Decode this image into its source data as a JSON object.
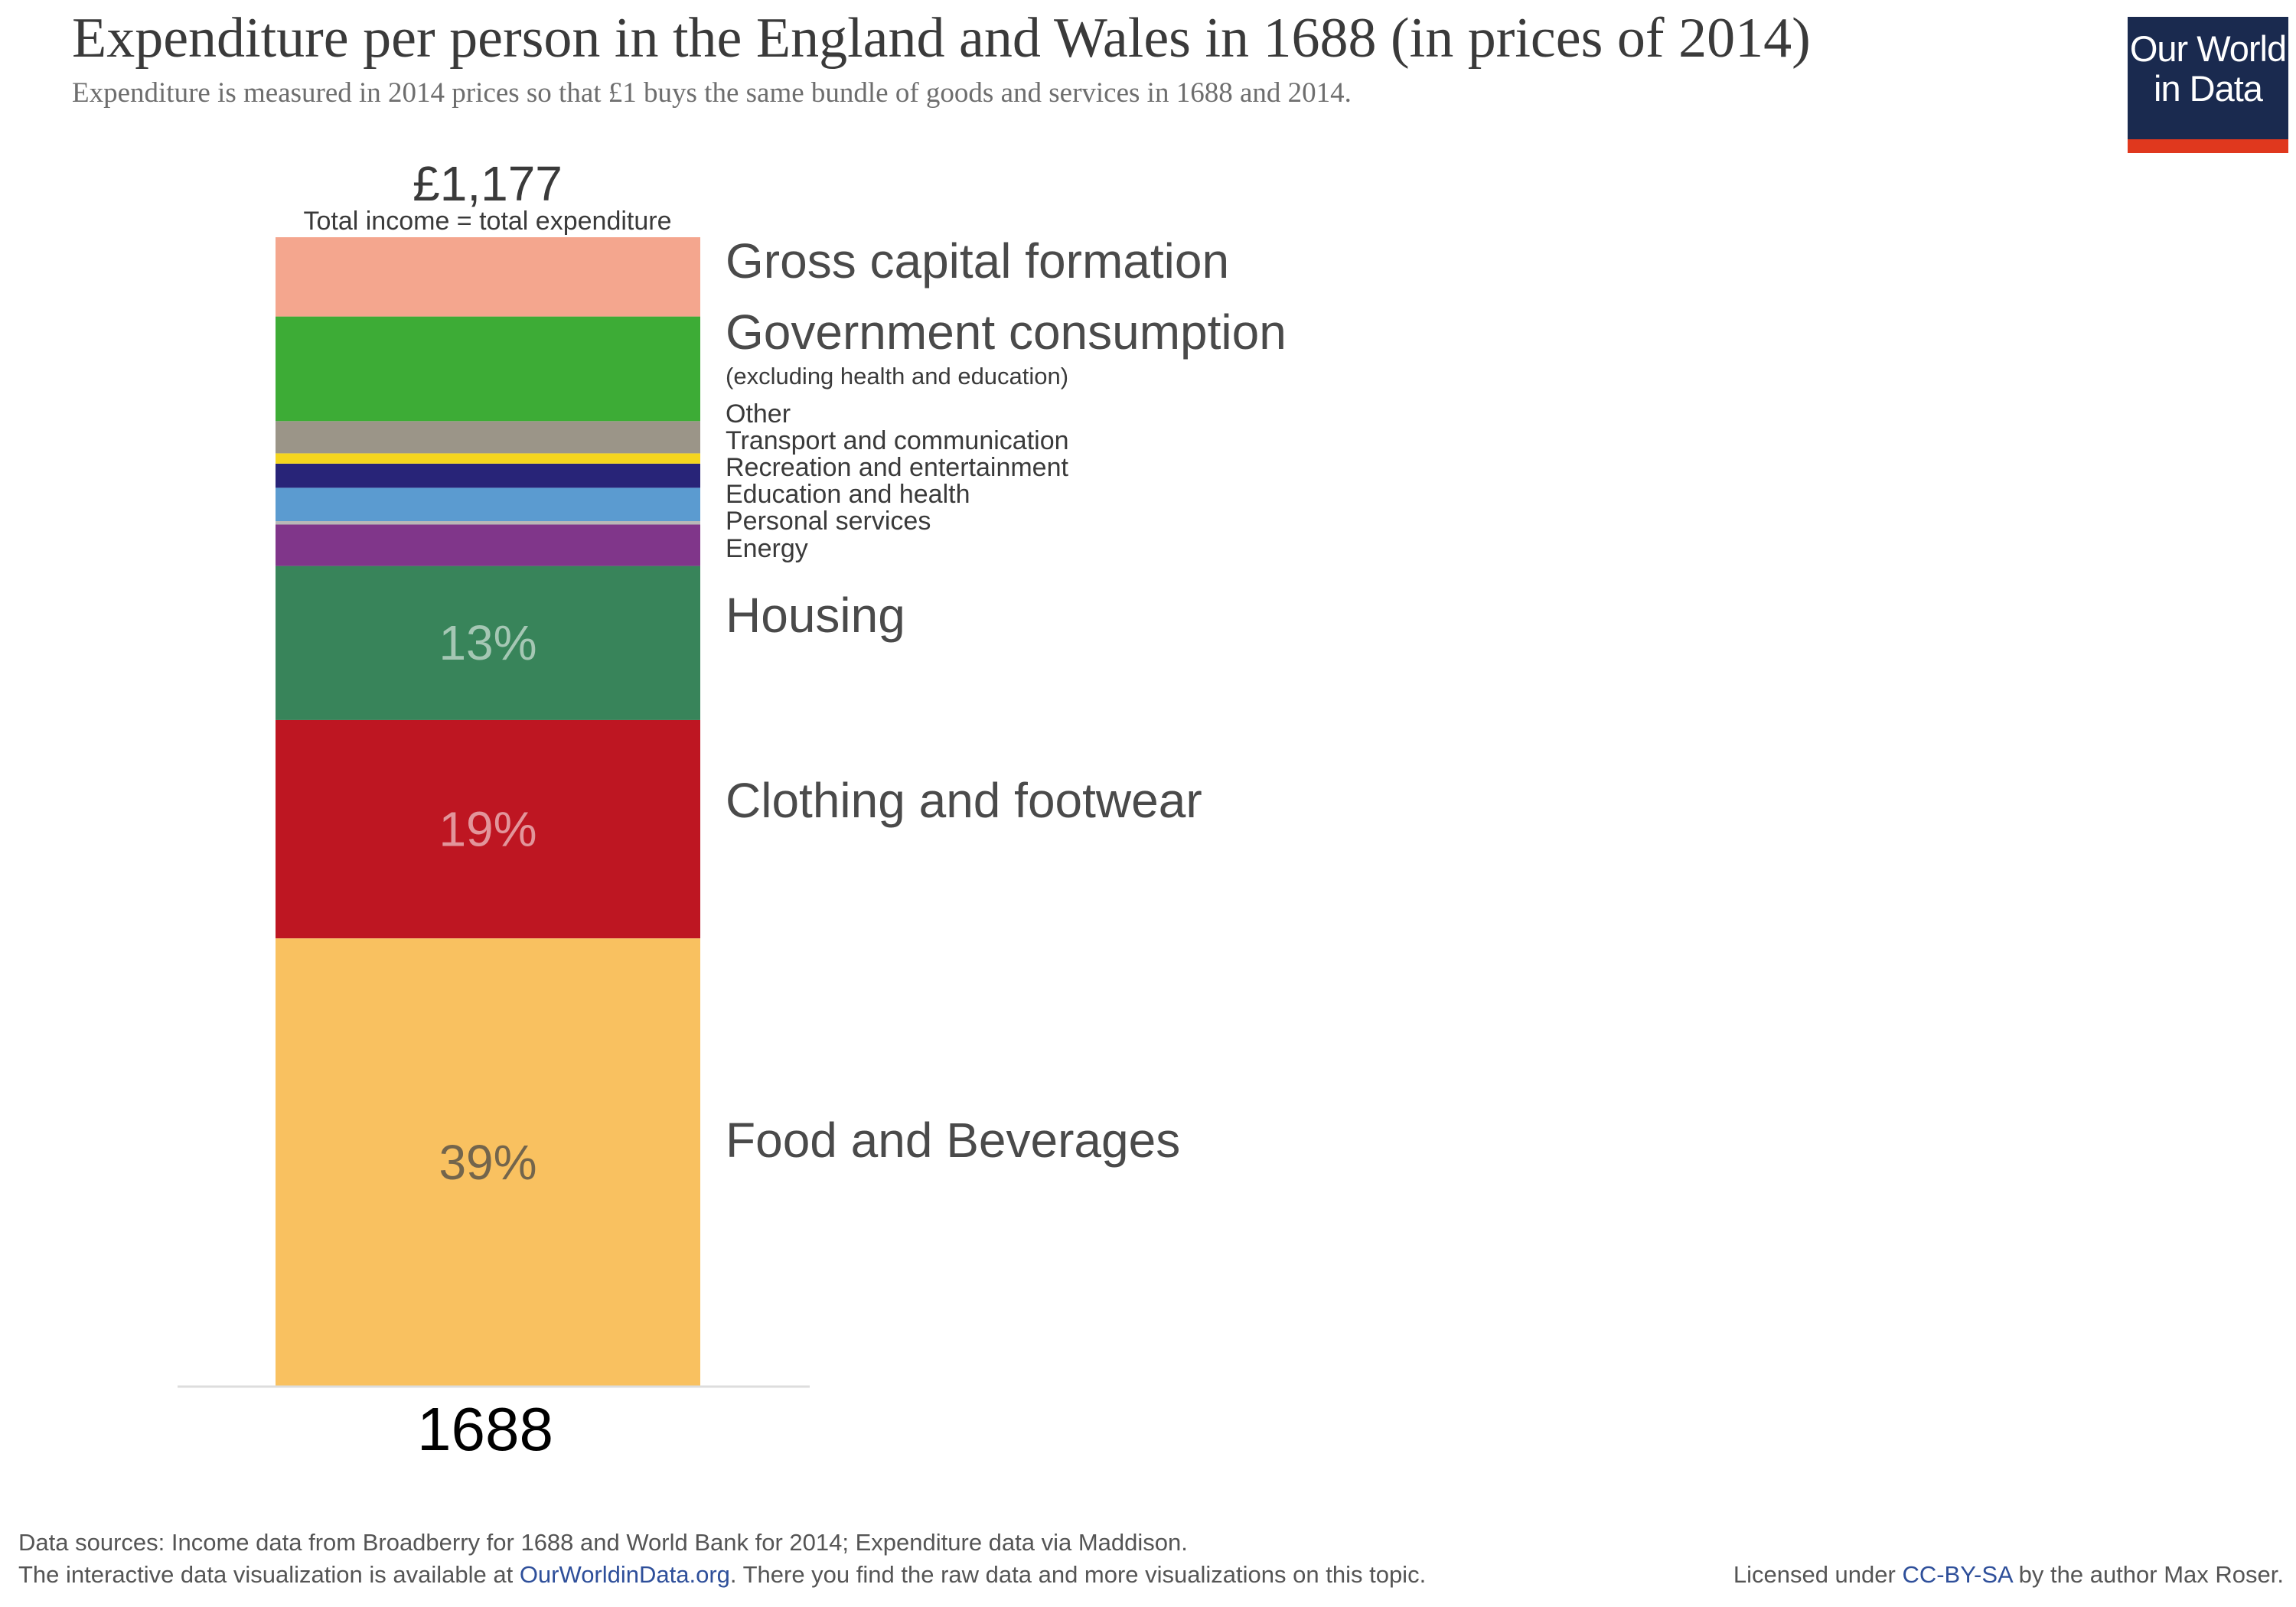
{
  "header": {
    "title": "Expenditure per person in the England and Wales in 1688 (in prices of 2014)",
    "subtitle": "Expenditure is measured in 2014 prices so that £1 buys the same bundle of goods and services in 1688 and 2014."
  },
  "logo": {
    "line1": "Our World",
    "line2": "in Data"
  },
  "footer": {
    "sources": "Data sources: Income data from Broadberry for 1688 and World Bank for 2014; Expenditure data via Maddison.",
    "interactive_prefix": "The interactive data visualization is available at ",
    "interactive_link": "OurWorldinData.org",
    "interactive_suffix": ". There you find the raw data and more visualizations on this topic.",
    "license_prefix": "Licensed under ",
    "license_link": "CC-BY-SA",
    "license_suffix": " by the author Max Roser."
  },
  "colors": {
    "logo_bg": "#1a2a4f",
    "logo_accent": "#e0381e",
    "link": "#2e4f9a"
  },
  "chart_data": {
    "type": "bar",
    "stacked": true,
    "categories": [
      "1688"
    ],
    "total_label": "£1,177",
    "total_caption": "Total income = total expenditure",
    "total_value": 1177,
    "unit": "£ (2014 prices)",
    "series": [
      {
        "name": "Food and Beverages",
        "percent": 39,
        "pct_label": "39%",
        "color": "#f9c160"
      },
      {
        "name": "Clothing and footwear",
        "percent": 19,
        "pct_label": "19%",
        "color": "#be1622"
      },
      {
        "name": "Housing",
        "percent": 13.4,
        "pct_label": "13%",
        "color": "#38845a"
      },
      {
        "name": "Energy",
        "percent": 3.6,
        "color": "#80368a"
      },
      {
        "name": "Personal services",
        "percent": 0.3,
        "color": "#b8b8b8"
      },
      {
        "name": "Education and health",
        "percent": 2.9,
        "color": "#5b9bd0"
      },
      {
        "name": "Recreation and entertainment",
        "percent": 2.1,
        "color": "#282478"
      },
      {
        "name": "Transport and communication",
        "percent": 0.9,
        "color": "#f4d51f"
      },
      {
        "name": "Other",
        "percent": 2.8,
        "color": "#9b9588"
      },
      {
        "name": "Government consumption",
        "sublabel": "(excluding health and education)",
        "percent": 9.1,
        "color": "#3dac36"
      },
      {
        "name": "Gross capital formation",
        "percent": 6.9,
        "color": "#f4a68e"
      }
    ]
  }
}
